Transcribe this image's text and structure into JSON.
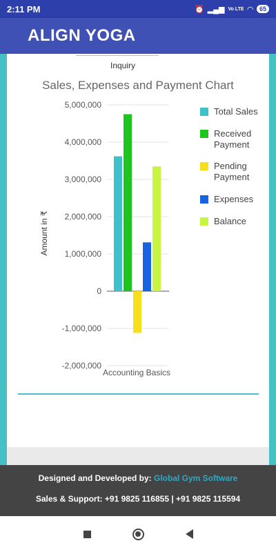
{
  "status_bar": {
    "time": "2:11 PM",
    "battery": "65",
    "icons": [
      "mail-icon",
      "dots-icon",
      "alarm-icon",
      "signal-icon",
      "volte-icon",
      "wifi-icon",
      "battery-icon"
    ],
    "network_label": "Vo LTE"
  },
  "app_bar": {
    "title": "ALIGN YOGA"
  },
  "previous_chart": {
    "xlabel": "Inquiry"
  },
  "chart_data": {
    "type": "bar",
    "title": "Sales, Expenses and Payment Chart",
    "ylabel": "Amount in ₹",
    "xlabel": "",
    "categories": [
      "Accounting Basics"
    ],
    "ylim": [
      -2000000,
      5000000
    ],
    "yticks": [
      5000000,
      4000000,
      3000000,
      2000000,
      1000000,
      0,
      -1000000,
      -2000000
    ],
    "ytick_labels": [
      "5,000,000",
      "4,000,000",
      "3,000,000",
      "2,000,000",
      "1,000,000",
      "0",
      "-1,000,000",
      "-2,000,000"
    ],
    "grid": true,
    "legend_position": "right",
    "series": [
      {
        "name": "Total Sales",
        "legend_lines": [
          "Total Sales"
        ],
        "color": "#3ec1c9",
        "values": [
          3620000
        ]
      },
      {
        "name": "Received Payment",
        "legend_lines": [
          "Received",
          "Payment"
        ],
        "color": "#1ec51e",
        "values": [
          4750000
        ]
      },
      {
        "name": "Pending Payment",
        "legend_lines": [
          "Pending",
          "Payment"
        ],
        "color": "#f7df1e",
        "values": [
          -1120000
        ]
      },
      {
        "name": "Expenses",
        "legend_lines": [
          "Expenses"
        ],
        "color": "#1864e0",
        "values": [
          1310000
        ]
      },
      {
        "name": "Balance",
        "legend_lines": [
          "Balance"
        ],
        "color": "#c6f542",
        "values": [
          3350000
        ]
      }
    ]
  },
  "footer": {
    "designed_prefix": "Designed and Developed by: ",
    "designed_link": "Global Gym Software",
    "support": "Sales & Support: +91 9825 116855 | +91 9825 115594"
  },
  "nav": {
    "icons": [
      "recent-apps-icon",
      "home-icon",
      "back-icon"
    ]
  },
  "colors": {
    "primary": "#3f51b5",
    "status": "#2c3faa",
    "accent": "#45c0c4",
    "footer": "#444444"
  }
}
